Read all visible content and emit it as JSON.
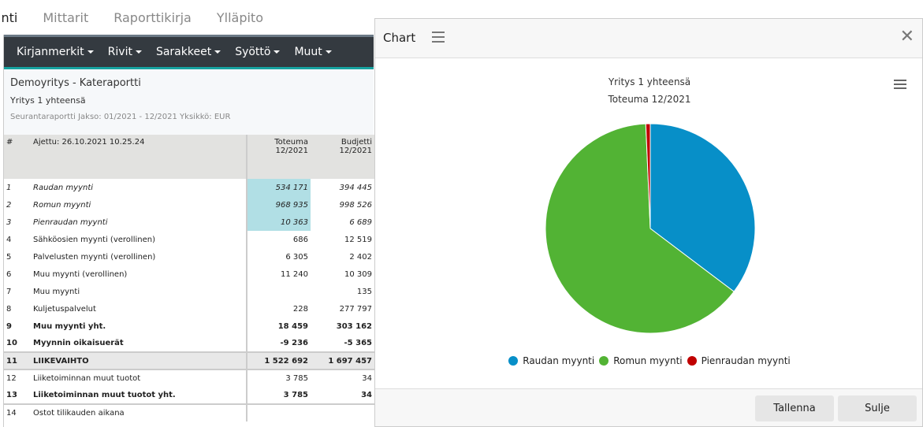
{
  "topnav": [
    "inti",
    "Mittarit",
    "Raporttikirja",
    "Ylläpito"
  ],
  "toolbar": [
    "Kirjanmerkit",
    "Rivit",
    "Sarakkeet",
    "Syöttö",
    "Muut"
  ],
  "report": {
    "title": "Demoyritys - Kateraportti",
    "subtitle": "Yritys 1 yhteensä",
    "info": "Seurantaraportti Jakso: 01/2021 - 12/2021 Yksikkö: EUR",
    "hdr": {
      "num": "#",
      "run": "Ajettu: 26.10.2021 10.25.24",
      "c1a": "Toteuma",
      "c1b": "12/2021",
      "c2a": "Budjetti",
      "c2b": "12/2021"
    },
    "rows": [
      [
        "1",
        "Raudan myynti",
        "534 171",
        "394 445"
      ],
      [
        "2",
        "Romun myynti",
        "968 935",
        "998 526"
      ],
      [
        "3",
        "Pienraudan myynti",
        "10 363",
        "6 689"
      ],
      [
        "4",
        "Sähköosien myynti (verollinen)",
        "686",
        "12 519"
      ],
      [
        "5",
        "Palvelusten myynti (verollinen)",
        "6 305",
        "2 402"
      ],
      [
        "6",
        "Muu myynti (verollinen)",
        "11 240",
        "10 309"
      ],
      [
        "7",
        "Muu myynti",
        "",
        "135"
      ],
      [
        "8",
        "Kuljetuspalvelut",
        "228",
        "277 797"
      ],
      [
        "9",
        "Muu myynti yht.",
        "18 459",
        "303 162"
      ],
      [
        "10",
        "Myynnin oikaisuerät",
        "-9 236",
        "-5 365"
      ],
      [
        "11",
        "LIIKEVAIHTO",
        "1 522 692",
        "1 697 457"
      ],
      [
        "12",
        "Liiketoiminnan muut tuotot",
        "3 785",
        "34"
      ],
      [
        "13",
        "Liiketoiminnan muut tuotot yht.",
        "3 785",
        "34"
      ],
      [
        "14",
        "Ostot tilikauden aikana",
        "",
        ""
      ]
    ]
  },
  "dialog": {
    "title": "Chart",
    "save": "Tallenna",
    "close": "Sulje"
  },
  "chart_data": {
    "type": "pie",
    "title": "Yritys 1 yhteensä",
    "subtitle": "Toteuma 12/2021",
    "categories": [
      "Raudan myynti",
      "Romun myynti",
      "Pienraudan myynti"
    ],
    "values": [
      534171,
      968935,
      10363
    ],
    "colors": [
      "#078fc8",
      "#52b334",
      "#c00000"
    ],
    "legend": "bottom"
  }
}
